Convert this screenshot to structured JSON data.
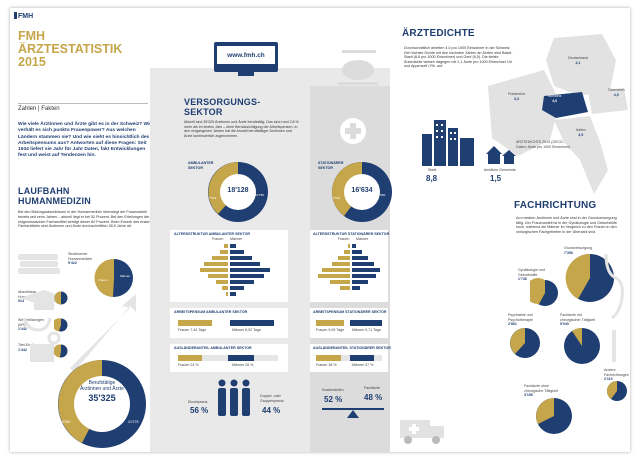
{
  "brand": {
    "logo": "FMH",
    "title_line1": "FMH",
    "title_line2": "ÄRZTESTATISTIK",
    "year": "2015"
  },
  "intro": {
    "kicker": "Zahlen | Fakten",
    "lead": "Wie viele Ärztinnen und Ärzte gibt es in der Schweiz? Wie verhält es sich punkto Frauenpower? Aus welchen Ländern stammen sie? Und wie sieht es hinsichtlich des Arbeitspensums aus? Antworten auf diese Fragen: Seit 1934 liefert sie Jahr für Jahr Daten, fakt Entwicklungen fest und weist auf Tendenzen hin."
  },
  "laufbahn": {
    "title_line1": "LAUFBAHN",
    "title_line2": "HUMANMEDIZIN",
    "text": "Bei den Bildungsabschlüssen in der Humanmedizin überwiegt der Frauenanteil bereits seit zehn Jahren – aktuell liegt er bei 52 Prozent. Bei den Erteilungen der eidgenössischen Facharzttitel beträgt dieser 60 Prozent. Beim Erwerb des ersten Facharzttitels sind Ärztinnen und Ärzte durchschnittlich 38,9 Jahre alt.",
    "steps": [
      {
        "label": "Studierende Humanmedizin",
        "value": "9'422"
      },
      {
        "label": "Abschlüsse Humanmedizin",
        "value": "914"
      },
      {
        "label": "Weiterbildungen (bFi)",
        "value": "1'442"
      },
      {
        "label": "Titel-Erteilungen",
        "value": "1'442"
      }
    ],
    "total_label": "Berufstätige Ärztinnen und Ärzte",
    "total_value": "35'325",
    "left_value": "14'050",
    "right_value": "21'275"
  },
  "versorgung": {
    "title_line1": "VERSORGUNGS-",
    "title_line2": "SEKTOR",
    "text": "Aktuell sind 35'325 Ärztinnen und Ärzte berufstätig. Das sind rund 2,8 % mehr als im letzten Jahr – ohne Berücksichtigung der Arbeitspensen. In den vergangenen Jahren hat die Anzahl berufstätiger Ärztinnen und Ärzte kontinuierlich zugenommen.",
    "website": "www.fmh.ch",
    "ambulant": {
      "title": "AMBULANTER SEKTOR",
      "total": "18'128",
      "frauen": "7'342",
      "maenner": "10'786",
      "age_title": "ALTERSSTRUKTUR AMBULANTER SEKTOR",
      "pensum_title": "ARBEITSPENSUM AMBULANTER SEKTOR",
      "pensum_frauen": "Frauen 7,44 Tage",
      "pensum_maenner": "Männer 8,92 Tage",
      "ausl_title": "AUSLÄNDERANTEIL AMBULANTER SEKTOR",
      "ausl_frauen": "Frauen 24 %",
      "ausl_maenner": "Männer 26 %"
    },
    "stationaer": {
      "title": "STATIONÄRER SEKTOR",
      "total": "16'634",
      "frauen": "7'044",
      "maenner": "9'590",
      "age_title": "ALTERSSTRUKTUR STATIONÄRER SEKTOR",
      "pensum_title": "ARBEITSPENSUM STATIONÄRER SEKTOR",
      "pensum_frauen": "Frauen 9,06 Tage",
      "pensum_maenner": "Männer 9,71 Tage",
      "ausl_title": "AUSLÄNDERANTEIL STATIONÄRER SEKTOR",
      "ausl_frauen": "Frauen 38 %",
      "ausl_maenner": "Männer 37 %"
    },
    "legend": {
      "frauen": "Frauen",
      "maenner": "Männer"
    },
    "einzelpraxis": {
      "label": "Einzelpraxis",
      "value": "56 %"
    },
    "doppelpraxis": {
      "label": "Doppel- oder Gruppenpraxis",
      "value": "44 %"
    },
    "kostenstellen": {
      "label": "Kostenstellen",
      "value": "52 %"
    },
    "fachaerzte": {
      "label": "Fachärzte",
      "value": "48 %"
    }
  },
  "dichte": {
    "title": "ÄRZTEDICHTE",
    "text": "Durchschnittlich arbeiten 4,0 pro 1000 Einwohner in der Schweiz. Die höchste Dichte mit den höchsten Zahlen an Ärzten sind Basel-Stadt (8,8 pro 1000 Einwohner) und Genf (6,5). Die tiefste Ärztedichte weisen dagegen mit 2,1 Ärzte pro 1000 Einwohner Uri und Appenzell I.Rh. auf.",
    "stadt_label": "Stadt",
    "stadt_value": "8,8",
    "land_label": "ländliche Gemeinde",
    "land_value": "1,5",
    "countries": [
      {
        "name": "Deutschland",
        "value": "4,1"
      },
      {
        "name": "Frankreich",
        "value": "3,3"
      },
      {
        "name": "Schweiz",
        "value": "4,0"
      },
      {
        "name": "Österreich",
        "value": "4,9"
      },
      {
        "name": "Italien",
        "value": "3,9"
      }
    ],
    "note": "ÄRZTEDICHTE 2014 (OECD-Daten; Ärzte pro 1000 Einwohner)"
  },
  "fach": {
    "title": "FACHRICHTUNG",
    "text": "Am meisten Ärztinnen und Ärzte sind in der Grundversorgung tätig. Der Frauenanteil ist in der Gynäkologie und Geburtshilfe hoch, während die Männer im Vergleich zu den Frauen in den chirurgischen Fachgebieten in der Überzahl sind.",
    "items": [
      {
        "label": "Grundversorgung",
        "value": "7'396",
        "pct": 0.45
      },
      {
        "label": "Gynäkologie und Geburtshilfe",
        "value": "1'746",
        "pct": 0.6
      },
      {
        "label": "Psychiatrie und Psychotherapie",
        "value": "2'861",
        "pct": 0.45
      },
      {
        "label": "Fachärzte mit chirurgischer Tätigkeit",
        "value": "5'040",
        "pct": 0.16
      },
      {
        "label": "Andere Fachrichtungen",
        "value": "2'110",
        "pct": 0.4
      },
      {
        "label": "Fachärzte ohne chirurgische Tätigkeit",
        "value": "3'156",
        "pct": 0.3
      }
    ]
  },
  "colors": {
    "navy": "#1f3e72",
    "gold": "#c6a64a",
    "grey": "#e6e6e6"
  }
}
